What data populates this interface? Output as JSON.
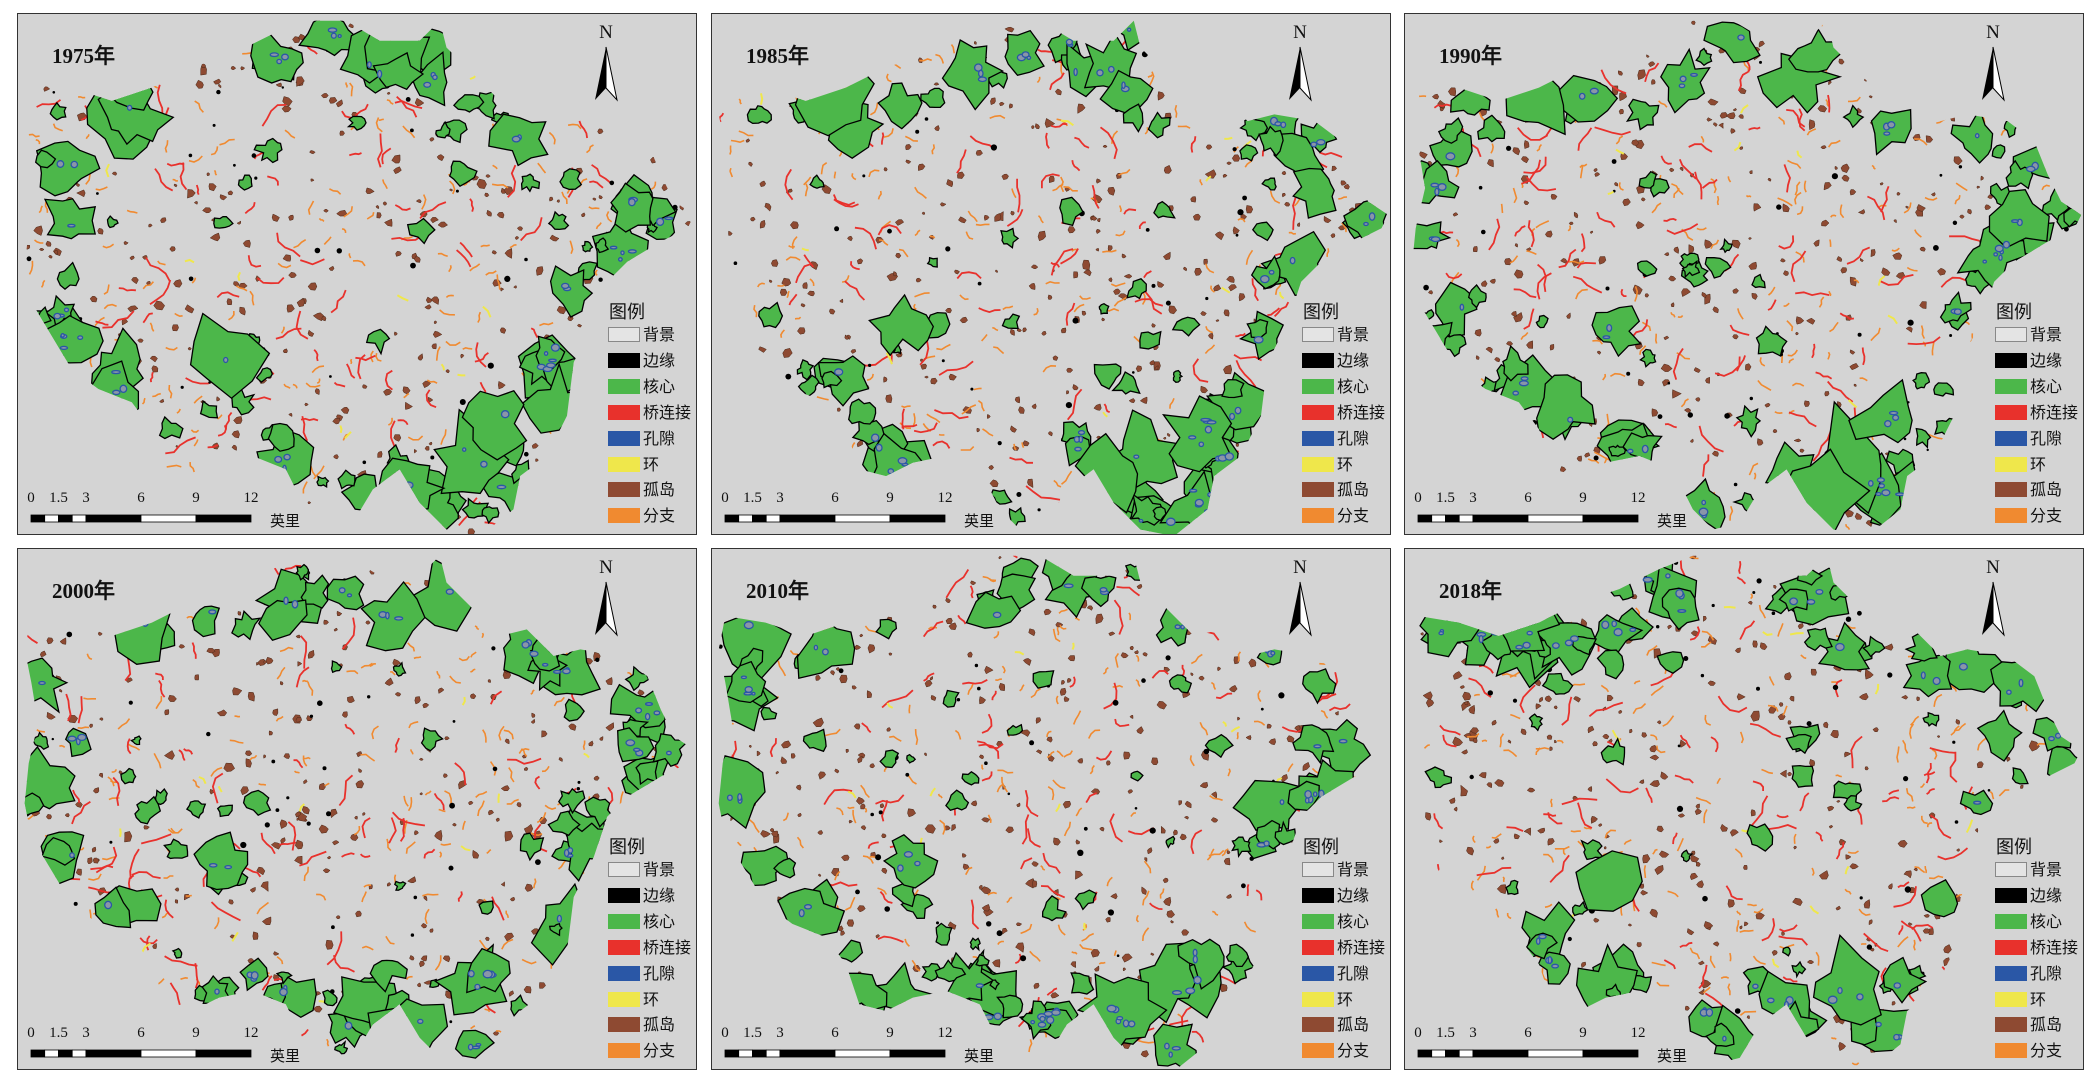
{
  "panels": [
    {
      "year": "1975年"
    },
    {
      "year": "1985年"
    },
    {
      "year": "1990年"
    },
    {
      "year": "2000年"
    },
    {
      "year": "2010年"
    },
    {
      "year": "2018年"
    }
  ],
  "north_label": "N",
  "legend": {
    "title": "图例",
    "items": [
      {
        "label": "背景",
        "color": "#e4e4e4"
      },
      {
        "label": "边缘",
        "color": "#000000"
      },
      {
        "label": "核心",
        "color": "#4cb74a"
      },
      {
        "label": "桥连接",
        "color": "#e8312c"
      },
      {
        "label": "孔隙",
        "color": "#2a57a6"
      },
      {
        "label": "环",
        "color": "#efe74b"
      },
      {
        "label": "孤岛",
        "color": "#8e4a32"
      },
      {
        "label": "分支",
        "color": "#f08a30"
      }
    ]
  },
  "scale": {
    "ticks": [
      "0",
      "1.5",
      "3",
      "6",
      "9",
      "12"
    ],
    "unit": "英里"
  },
  "map_background": "#d4d4d4"
}
